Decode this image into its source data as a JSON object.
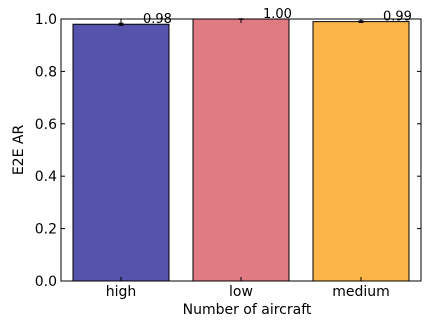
{
  "chart_data": {
    "type": "bar",
    "categories": [
      "high",
      "low",
      "medium"
    ],
    "values": [
      0.98,
      1.0,
      0.99
    ],
    "errors": [
      0.004,
      0.001,
      0.003
    ],
    "value_labels": [
      "0.98",
      "1.00",
      "0.99"
    ],
    "colors": [
      "#5653ad",
      "#e07b84",
      "#fbb448"
    ],
    "xlabel": "Number of aircraft",
    "ylabel": "E2E AR",
    "ylim": [
      0.0,
      1.0
    ],
    "yticks": [
      0.0,
      0.2,
      0.4,
      0.6,
      0.8,
      1.0
    ],
    "ytick_labels": [
      "0.0",
      "0.2",
      "0.4",
      "0.6",
      "0.8",
      "1.0"
    ],
    "grid": false,
    "legend": "none"
  }
}
